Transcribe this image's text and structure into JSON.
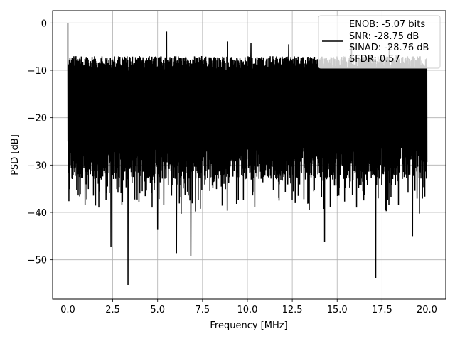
{
  "chart_data": {
    "type": "line",
    "title": "",
    "xlabel": "Frequency [MHz]",
    "ylabel": "PSD [dB]",
    "xlim": [
      -0.85,
      21.05
    ],
    "ylim": [
      -58.3,
      2.6
    ],
    "xticks": [
      0.0,
      2.5,
      5.0,
      7.5,
      10.0,
      12.5,
      15.0,
      17.5,
      20.0
    ],
    "xtick_labels": [
      "0.0",
      "2.5",
      "5.0",
      "7.5",
      "10.0",
      "12.5",
      "15.0",
      "17.5",
      "20.0"
    ],
    "yticks": [
      0,
      -10,
      -20,
      -30,
      -40,
      -50
    ],
    "ytick_labels": [
      "0",
      "−10",
      "−20",
      "−30",
      "−40",
      "−50"
    ],
    "grid": true,
    "line_color": "#000000",
    "legend": {
      "placement": "top-right",
      "entries": [
        "ENOB: -5.07 bits",
        "SNR: -28.75 dB",
        "SINAD: -28.76 dB",
        "SFDR: 0.57"
      ]
    },
    "series": [
      {
        "x_range": [
          0.0,
          20.0
        ],
        "peak": {
          "x": 0.0,
          "y": 0.0
        },
        "upper_envelope_approx": -7,
        "lower_envelope_approx": -33,
        "notable_dips": [
          {
            "x": 3.35,
            "y": -55.3
          },
          {
            "x": 17.15,
            "y": -53.9
          },
          {
            "x": 6.85,
            "y": -49.3
          },
          {
            "x": 6.05,
            "y": -48.6
          },
          {
            "x": 2.4,
            "y": -47.2
          },
          {
            "x": 14.3,
            "y": -46.2
          },
          {
            "x": 19.2,
            "y": -45.0
          },
          {
            "x": 5.0,
            "y": -43.7
          }
        ],
        "notable_peaks": [
          {
            "x": 5.5,
            "y": -1.8
          },
          {
            "x": 8.9,
            "y": -3.9
          },
          {
            "x": 10.2,
            "y": -4.3
          },
          {
            "x": 12.3,
            "y": -4.5
          },
          {
            "x": 15.8,
            "y": -4.5
          },
          {
            "x": 17.9,
            "y": -4.6
          }
        ]
      }
    ]
  }
}
